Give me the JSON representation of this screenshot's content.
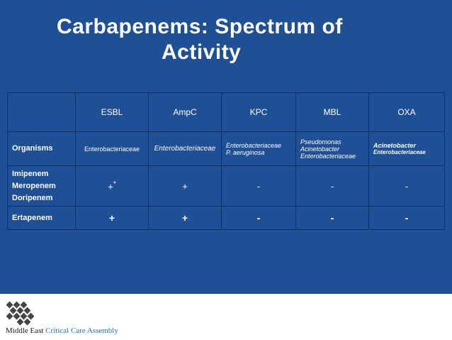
{
  "title": {
    "line1": "Carbapenems: Spectrum of",
    "line2": "Activity"
  },
  "table": {
    "headers": [
      "",
      "ESBL",
      "AmpC",
      "KPC",
      "MBL",
      "OXA"
    ],
    "organisms": {
      "label": "Organisms",
      "esbl": "Enterobacteriaceae",
      "ampc": "Enterobacteriaceae",
      "kpc": [
        "Enterobacteriaceae",
        "P. aeruginosa"
      ],
      "mbl": [
        "Pseudomonas",
        "Acinetobacter",
        "Enterobacteriaceae"
      ],
      "oxa": [
        "Acinetobacter",
        "Enterobacteriaceae"
      ]
    },
    "imipenem_row": {
      "label": [
        "Imipenem",
        "Meropenem",
        "Doripenem"
      ],
      "esbl": "+",
      "esbl_note": "*",
      "ampc": "+",
      "kpc": "-",
      "mbl": "-",
      "oxa": "-"
    },
    "ertapenem_row": {
      "label": "Ertapenem",
      "esbl": "+",
      "ampc": "+",
      "kpc": "-",
      "mbl": "-",
      "oxa": "-"
    }
  },
  "footer": {
    "org_part1": "Middle East ",
    "org_part2": "Critical Care Assembly"
  },
  "colors": {
    "background": "#1f4f94",
    "text": "#ffffff",
    "accent": "#2c6fb8"
  },
  "icons": {
    "logo": "checkered-diamond-logo"
  }
}
